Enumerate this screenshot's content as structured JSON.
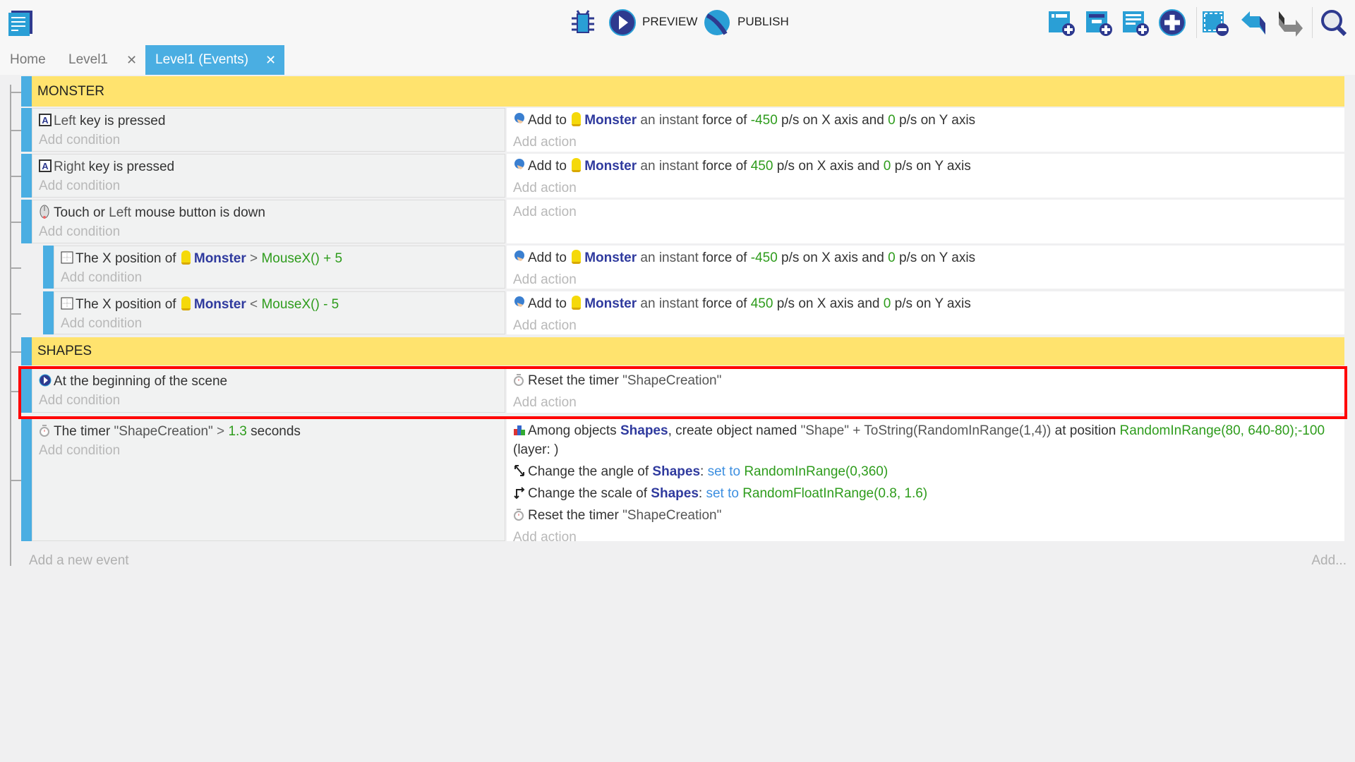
{
  "toolbar": {
    "preview_label": "PREVIEW",
    "publish_label": "PUBLISH",
    "icons": [
      "events-logo-icon",
      "debugger-icon",
      "preview-play-icon",
      "publish-globe-icon",
      "add-event-icon",
      "add-subevent-icon",
      "add-comment-icon",
      "add-other-icon",
      "delete-icon",
      "undo-icon",
      "redo-icon",
      "search-icon"
    ]
  },
  "tabs": [
    {
      "label": "Home",
      "active": false
    },
    {
      "label": "Level1",
      "active": false,
      "close": "✕"
    },
    {
      "label": "Level1 (Events)",
      "active": true,
      "close": "✕"
    }
  ],
  "colors": {
    "accent": "#4aaee2",
    "group": "#ffe36e",
    "object": "#2f3a9e",
    "value": "#2e9c1c",
    "highlight": "#ff0000"
  },
  "placeholders": {
    "add_condition": "Add condition",
    "add_action": "Add action"
  },
  "rows": [
    {
      "type": "group",
      "title": "MONSTER"
    },
    {
      "type": "event",
      "conditions": [
        {
          "icon": "keyboard-icon",
          "parts": [
            {
              "t": "Left",
              "c": "dim"
            },
            {
              "t": " key is pressed",
              "c": ""
            }
          ]
        }
      ],
      "actions": [
        {
          "icon": "force-icon",
          "parts": [
            {
              "t": "Add to ",
              "c": ""
            },
            {
              "t": "Monster",
              "c": "obj",
              "m": 1
            },
            {
              "t": " an instant ",
              "c": "dim"
            },
            {
              "t": "force of ",
              "c": ""
            },
            {
              "t": "-450",
              "c": "num"
            },
            {
              "t": " p/s on X axis and ",
              "c": ""
            },
            {
              "t": "0",
              "c": "num"
            },
            {
              "t": " p/s on Y axis",
              "c": ""
            }
          ]
        }
      ]
    },
    {
      "type": "event",
      "conditions": [
        {
          "icon": "keyboard-icon",
          "parts": [
            {
              "t": "Right",
              "c": "dim"
            },
            {
              "t": " key is pressed",
              "c": ""
            }
          ]
        }
      ],
      "actions": [
        {
          "icon": "force-icon",
          "parts": [
            {
              "t": "Add to ",
              "c": ""
            },
            {
              "t": "Monster",
              "c": "obj",
              "m": 1
            },
            {
              "t": " an instant ",
              "c": "dim"
            },
            {
              "t": "force of ",
              "c": ""
            },
            {
              "t": "450",
              "c": "num"
            },
            {
              "t": " p/s on X axis and ",
              "c": ""
            },
            {
              "t": "0",
              "c": "num"
            },
            {
              "t": " p/s on Y axis",
              "c": ""
            }
          ]
        }
      ]
    },
    {
      "type": "event",
      "conditions": [
        {
          "icon": "mouse-icon",
          "parts": [
            {
              "t": "Touch or ",
              "c": ""
            },
            {
              "t": "Left",
              "c": "dim"
            },
            {
              "t": " mouse button is down",
              "c": ""
            }
          ]
        }
      ],
      "actions": []
    },
    {
      "type": "event",
      "sub": true,
      "conditions": [
        {
          "icon": "position-icon",
          "parts": [
            {
              "t": "The X position of ",
              "c": ""
            },
            {
              "t": "Monster",
              "c": "obj",
              "m": 1
            },
            {
              "t": " > ",
              "c": "op"
            },
            {
              "t": " MouseX() + 5",
              "c": "num"
            }
          ]
        }
      ],
      "actions": [
        {
          "icon": "force-icon",
          "parts": [
            {
              "t": "Add to ",
              "c": ""
            },
            {
              "t": "Monster",
              "c": "obj",
              "m": 1
            },
            {
              "t": " an instant ",
              "c": "dim"
            },
            {
              "t": "force of ",
              "c": ""
            },
            {
              "t": "-450",
              "c": "num"
            },
            {
              "t": " p/s on X axis and ",
              "c": ""
            },
            {
              "t": "0",
              "c": "num"
            },
            {
              "t": " p/s on Y axis",
              "c": ""
            }
          ]
        }
      ]
    },
    {
      "type": "event",
      "sub": true,
      "conditions": [
        {
          "icon": "position-icon",
          "parts": [
            {
              "t": "The X position of ",
              "c": ""
            },
            {
              "t": "Monster",
              "c": "obj",
              "m": 1
            },
            {
              "t": " < ",
              "c": "op"
            },
            {
              "t": " MouseX() - 5",
              "c": "num"
            }
          ]
        }
      ],
      "actions": [
        {
          "icon": "force-icon",
          "parts": [
            {
              "t": "Add to ",
              "c": ""
            },
            {
              "t": "Monster",
              "c": "obj",
              "m": 1
            },
            {
              "t": " an instant ",
              "c": "dim"
            },
            {
              "t": "force of ",
              "c": ""
            },
            {
              "t": "450",
              "c": "num"
            },
            {
              "t": " p/s on X axis and ",
              "c": ""
            },
            {
              "t": "0",
              "c": "num"
            },
            {
              "t": " p/s on Y axis",
              "c": ""
            }
          ]
        }
      ]
    },
    {
      "type": "group",
      "title": "SHAPES"
    },
    {
      "type": "event",
      "selected": true,
      "conditions": [
        {
          "icon": "scene-start-icon",
          "parts": [
            {
              "t": "At the beginning of the scene",
              "c": ""
            }
          ]
        }
      ],
      "actions": [
        {
          "icon": "timer-icon",
          "parts": [
            {
              "t": "Reset the timer ",
              "c": ""
            },
            {
              "t": "\"ShapeCreation\"",
              "c": "dim"
            }
          ]
        }
      ]
    },
    {
      "type": "event",
      "conditions": [
        {
          "icon": "timer-icon",
          "parts": [
            {
              "t": "The timer ",
              "c": ""
            },
            {
              "t": "\"ShapeCreation\"",
              "c": "dim"
            },
            {
              "t": " > ",
              "c": "op"
            },
            {
              "t": " 1.3",
              "c": "num"
            },
            {
              "t": " seconds",
              "c": ""
            }
          ]
        }
      ],
      "actions": [
        {
          "icon": "create-object-icon",
          "parts": [
            {
              "t": "Among objects ",
              "c": ""
            },
            {
              "t": "Shapes",
              "c": "obj"
            },
            {
              "t": ", create object named ",
              "c": ""
            },
            {
              "t": "\"Shape\" + ToString(RandomInRange(1,4))",
              "c": "dim"
            },
            {
              "t": " at position ",
              "c": ""
            },
            {
              "t": "RandomInRange(80, 640-80);-100",
              "c": "num"
            },
            {
              "t": " (layer: )",
              "c": ""
            }
          ]
        },
        {
          "icon": "angle-icon",
          "parts": [
            {
              "t": "Change the angle of ",
              "c": ""
            },
            {
              "t": "Shapes",
              "c": "obj"
            },
            {
              "t": ": ",
              "c": ""
            },
            {
              "t": "set to ",
              "c": "kw"
            },
            {
              "t": " RandomInRange(0,360)",
              "c": "num"
            }
          ]
        },
        {
          "icon": "scale-icon",
          "parts": [
            {
              "t": "Change the scale of ",
              "c": ""
            },
            {
              "t": "Shapes",
              "c": "obj"
            },
            {
              "t": ": ",
              "c": ""
            },
            {
              "t": "set to ",
              "c": "kw"
            },
            {
              "t": " RandomFloatInRange(0.8, 1.6)",
              "c": "num"
            }
          ]
        },
        {
          "icon": "timer-icon",
          "parts": [
            {
              "t": "Reset the timer ",
              "c": ""
            },
            {
              "t": "\"ShapeCreation\"",
              "c": "dim"
            }
          ]
        }
      ]
    }
  ],
  "footer": {
    "add_event": "Add a new event",
    "add_more": "Add..."
  }
}
